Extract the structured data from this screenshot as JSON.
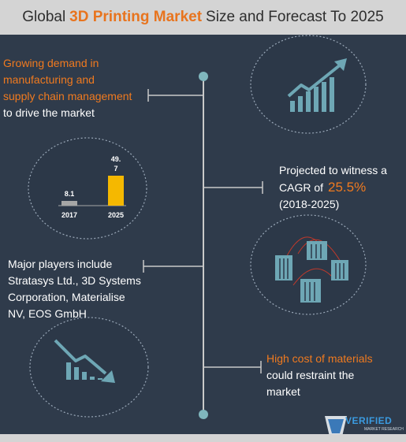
{
  "header": {
    "title_prefix": "Global",
    "title_highlight": "3D Printing Market",
    "title_suffix": "Size and Forecast To 2025"
  },
  "driver": {
    "line1": "Growing demand  in",
    "line2": "manufacturing and",
    "line3": "supply chain management",
    "line4": " to drive the market"
  },
  "chart_data": {
    "type": "bar",
    "categories": [
      "2017",
      "2025"
    ],
    "values": [
      8.1,
      49.7
    ],
    "value_labels": [
      "8.1",
      "49.\n7"
    ],
    "colors": [
      "#a6a6a6",
      "#f5b800"
    ]
  },
  "cagr": {
    "line1": "Projected to witness a",
    "line2_prefix": "CAGR of",
    "value": "25.5%",
    "line3": "(2018-2025)"
  },
  "players": {
    "line1": "Major players include",
    "line2": "Stratasys Ltd., 3D Systems",
    "line3": "Corporation, Materialise",
    "line4": "NV, EOS GmbH"
  },
  "restraint": {
    "line1": "High cost of materials",
    "line2": "could restraint  the",
    "line3": "market"
  },
  "logo": {
    "name": "VERIFIED",
    "sub": "MARKET RESEARCH"
  },
  "colors": {
    "background": "#2f3b4b",
    "accent": "#f07a1f",
    "line": "#c9c9c9",
    "circle_dash": "#9aa8b8",
    "icon": "#6ea7b5"
  }
}
